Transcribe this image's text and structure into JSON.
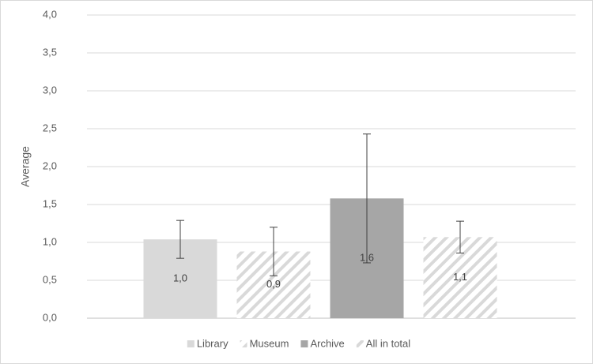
{
  "chart_data": {
    "type": "bar",
    "y_label": "Average",
    "categories": [
      null
    ],
    "series": [
      {
        "name": "Library",
        "color": "#d9d9d9",
        "hatched": false,
        "values": [
          1.04
        ],
        "value_labels": [
          "1,0"
        ],
        "errors": [
          0.25
        ]
      },
      {
        "name": "Museum",
        "color": "#d9d9d9",
        "hatched": true,
        "values": [
          0.88
        ],
        "value_labels": [
          "0,9"
        ],
        "errors": [
          0.32
        ]
      },
      {
        "name": "Archive",
        "color": "#a6a6a6",
        "hatched": false,
        "values": [
          1.58
        ],
        "value_labels": [
          "1,6"
        ],
        "errors": [
          0.85
        ]
      },
      {
        "name": "All in total",
        "color": "#d9d9d9",
        "hatched": true,
        "values": [
          1.07
        ],
        "value_labels": [
          "1,1"
        ],
        "errors": [
          0.21
        ]
      }
    ],
    "ylim": [
      0,
      4
    ],
    "yticks": [
      {
        "value": 0,
        "label": "0,0"
      },
      {
        "value": 0.5,
        "label": "0,5"
      },
      {
        "value": 1,
        "label": "1,0"
      },
      {
        "value": 1.5,
        "label": "1,5"
      },
      {
        "value": 2,
        "label": "2,0"
      },
      {
        "value": 2.5,
        "label": "2,5"
      },
      {
        "value": 3,
        "label": "3,0"
      },
      {
        "value": 3.5,
        "label": "3,5"
      },
      {
        "value": 4,
        "label": "4,0"
      }
    ],
    "grid": true,
    "legend": "bottom"
  }
}
